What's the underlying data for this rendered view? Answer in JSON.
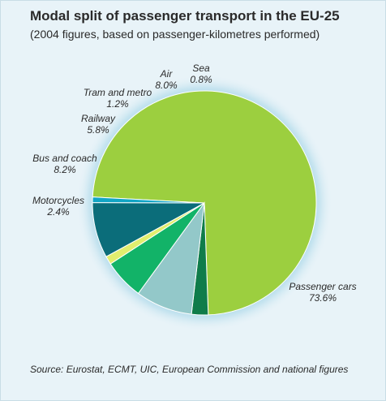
{
  "chart_data": {
    "type": "pie",
    "title": "Modal split of passenger transport in the EU-25",
    "subtitle": "(2004 figures, based on passenger-kilometres performed)",
    "source": "Source: Eurostat, ECMT, UIC, European Commission and national figures",
    "slices": [
      {
        "name": "Passenger cars",
        "value": 73.6,
        "value_label": "73.6%",
        "color": "#9ccf3f"
      },
      {
        "name": "Motorcycles",
        "value": 2.4,
        "value_label": "2.4%",
        "color": "#0f7c4a"
      },
      {
        "name": "Bus and coach",
        "value": 8.2,
        "value_label": "8.2%",
        "color": "#93c8c9"
      },
      {
        "name": "Railway",
        "value": 5.8,
        "value_label": "5.8%",
        "color": "#12b368"
      },
      {
        "name": "Tram and metro",
        "value": 1.2,
        "value_label": "1.2%",
        "color": "#e1ee6e"
      },
      {
        "name": "Air",
        "value": 8.0,
        "value_label": "8.0%",
        "color": "#0b6d7a"
      },
      {
        "name": "Sea",
        "value": 0.8,
        "value_label": "0.8%",
        "color": "#12a5c5"
      }
    ]
  }
}
